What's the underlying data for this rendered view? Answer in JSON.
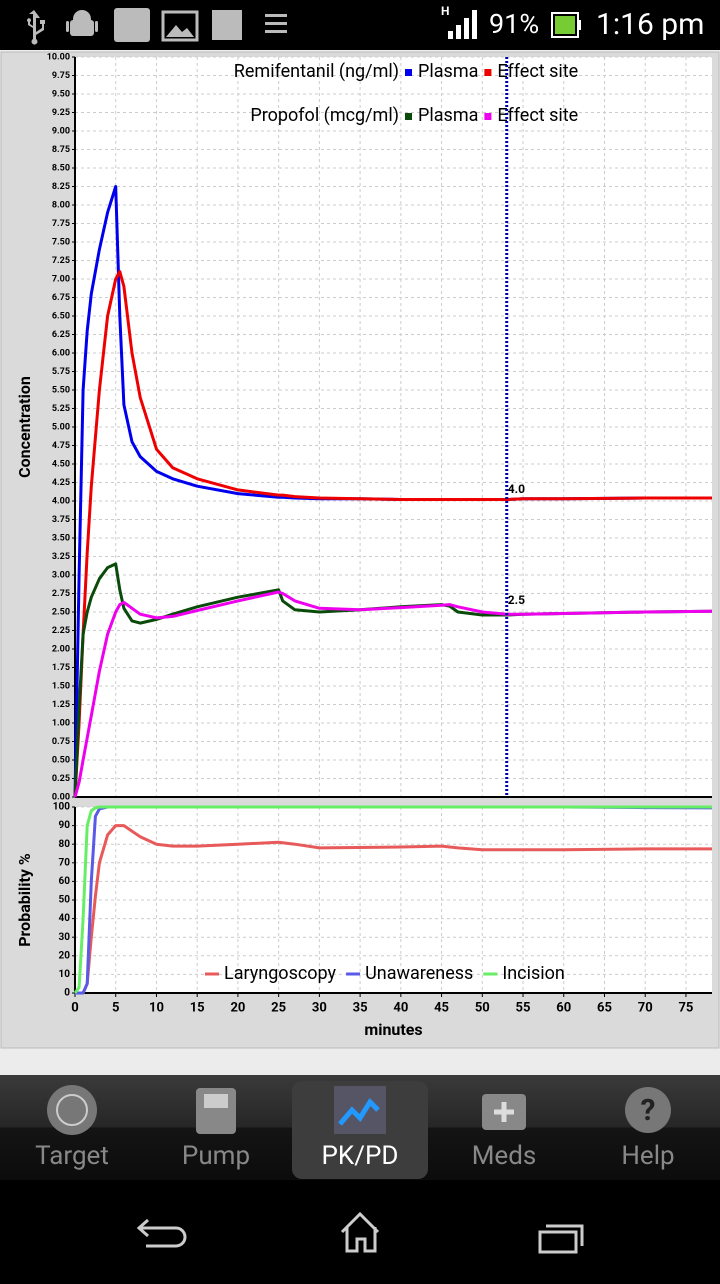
{
  "status": {
    "battery": "91%",
    "time": "1:16 pm"
  },
  "chart_data": [
    {
      "type": "line",
      "ylabel": "Concentration",
      "legend_titles": [
        "Remifentanil (ng/ml)",
        "Propofol (mcg/ml)"
      ],
      "x": [
        0,
        0.5,
        1,
        1.5,
        2,
        3,
        4,
        5,
        5.5,
        6,
        7,
        8,
        10,
        12,
        15,
        20,
        25,
        25.5,
        27,
        30,
        35,
        40,
        45,
        46,
        47,
        50,
        53,
        55,
        60,
        70,
        78.2
      ],
      "xlim": [
        0,
        78.2
      ],
      "ylim": [
        0,
        10
      ],
      "xticks": [
        0,
        5,
        10,
        15,
        20,
        25,
        30,
        35,
        40,
        45,
        50,
        55,
        60,
        65,
        70,
        75
      ],
      "yticks": [
        {
          "value": 0,
          "label": "0.00"
        },
        {
          "value": 0.25,
          "label": "0.25"
        },
        {
          "value": 0.5,
          "label": "0.50"
        },
        {
          "value": 0.75,
          "label": "0.75"
        },
        {
          "value": 1,
          "label": "1.00"
        },
        {
          "value": 1.25,
          "label": "1.25"
        },
        {
          "value": 1.5,
          "label": "1.50"
        },
        {
          "value": 1.75,
          "label": "1.75"
        },
        {
          "value": 2,
          "label": "2.00"
        },
        {
          "value": 2.25,
          "label": "2.25"
        },
        {
          "value": 2.5,
          "label": "2.50"
        },
        {
          "value": 2.75,
          "label": "2.75"
        },
        {
          "value": 3,
          "label": "3.00"
        },
        {
          "value": 3.25,
          "label": "3.25"
        },
        {
          "value": 3.5,
          "label": "3.50"
        },
        {
          "value": 3.75,
          "label": "3.75"
        },
        {
          "value": 4,
          "label": "4.00"
        },
        {
          "value": 4.25,
          "label": "4.25"
        },
        {
          "value": 4.5,
          "label": "4.50"
        },
        {
          "value": 4.75,
          "label": "4.75"
        },
        {
          "value": 5,
          "label": "5.00"
        },
        {
          "value": 5.25,
          "label": "5.25"
        },
        {
          "value": 5.5,
          "label": "5.50"
        },
        {
          "value": 5.75,
          "label": "5.75"
        },
        {
          "value": 6,
          "label": "6.00"
        },
        {
          "value": 6.25,
          "label": "6.25"
        },
        {
          "value": 6.5,
          "label": "6.50"
        },
        {
          "value": 6.75,
          "label": "6.75"
        },
        {
          "value": 7,
          "label": "7.00"
        },
        {
          "value": 7.25,
          "label": "7.25"
        },
        {
          "value": 7.5,
          "label": "7.50"
        },
        {
          "value": 7.75,
          "label": "7.75"
        },
        {
          "value": 8,
          "label": "8.00"
        },
        {
          "value": 8.25,
          "label": "8.25"
        },
        {
          "value": 8.5,
          "label": "8.50"
        },
        {
          "value": 8.75,
          "label": "8.75"
        },
        {
          "value": 9,
          "label": "9.00"
        },
        {
          "value": 9.25,
          "label": "9.25"
        },
        {
          "value": 9.5,
          "label": "9.50"
        },
        {
          "value": 9.75,
          "label": "9.75"
        },
        {
          "value": 10,
          "label": "10.00"
        }
      ],
      "grid": true,
      "cursor_x": 53,
      "cursor_color": "#0000aa",
      "annotations": [
        {
          "x": 53,
          "y": 4.0,
          "text": "4.0"
        },
        {
          "x": 53,
          "y": 2.5,
          "text": "2.5"
        }
      ],
      "series": [
        {
          "name": "Plasma",
          "color": "#0000ee",
          "values": [
            0,
            3.0,
            5.5,
            6.3,
            6.8,
            7.4,
            7.9,
            8.25,
            6.5,
            5.3,
            4.8,
            4.6,
            4.4,
            4.3,
            4.2,
            4.1,
            4.05,
            4.05,
            4.04,
            4.03,
            4.03,
            4.02,
            4.02,
            4.02,
            4.02,
            4.02,
            4.02,
            4.03,
            4.03,
            4.04,
            4.04
          ]
        },
        {
          "name": "Effect site",
          "color": "#ee0000",
          "values": [
            0,
            1.0,
            2.2,
            3.3,
            4.2,
            5.5,
            6.5,
            7.0,
            7.1,
            6.9,
            6.0,
            5.4,
            4.7,
            4.45,
            4.3,
            4.15,
            4.08,
            4.08,
            4.06,
            4.04,
            4.03,
            4.02,
            4.02,
            4.02,
            4.02,
            4.02,
            4.02,
            4.03,
            4.03,
            4.04,
            4.04
          ]
        },
        {
          "name": "Plasma",
          "color": "#0a4a0a",
          "values": [
            0,
            1.2,
            2.2,
            2.5,
            2.7,
            2.95,
            3.1,
            3.15,
            2.8,
            2.55,
            2.38,
            2.35,
            2.4,
            2.47,
            2.57,
            2.7,
            2.8,
            2.65,
            2.53,
            2.5,
            2.53,
            2.57,
            2.6,
            2.58,
            2.5,
            2.46,
            2.46,
            2.47,
            2.48,
            2.5,
            2.51
          ]
        },
        {
          "name": "Effect site",
          "color": "#ee00ee",
          "values": [
            0,
            0.2,
            0.5,
            0.8,
            1.1,
            1.7,
            2.2,
            2.5,
            2.6,
            2.63,
            2.55,
            2.47,
            2.42,
            2.44,
            2.52,
            2.65,
            2.77,
            2.75,
            2.65,
            2.55,
            2.53,
            2.56,
            2.59,
            2.6,
            2.57,
            2.5,
            2.47,
            2.47,
            2.48,
            2.5,
            2.51
          ]
        }
      ]
    },
    {
      "type": "line",
      "ylabel": "Probability %",
      "xlabel": "minutes",
      "x": [
        0,
        0.5,
        1,
        1.5,
        2,
        2.5,
        3,
        4,
        5,
        6,
        7,
        8,
        10,
        12,
        15,
        20,
        25,
        27,
        30,
        40,
        45,
        47,
        50,
        55,
        60,
        70,
        78.2
      ],
      "xlim": [
        0,
        78.2
      ],
      "ylim": [
        0,
        100
      ],
      "xticks": [
        0,
        5,
        10,
        15,
        20,
        25,
        30,
        35,
        40,
        45,
        50,
        55,
        60,
        65,
        70,
        75
      ],
      "yticks": [
        0,
        10,
        20,
        30,
        40,
        50,
        60,
        70,
        80,
        90,
        100
      ],
      "grid": true,
      "series": [
        {
          "name": "Laryngoscopy",
          "color": "#e85a5a",
          "values": [
            0,
            0,
            0,
            5,
            30,
            52,
            70,
            85,
            90,
            90,
            87,
            84,
            80,
            79,
            79,
            80,
            81,
            80,
            78,
            78.5,
            79,
            78,
            77,
            77,
            77,
            77.5,
            77.5
          ]
        },
        {
          "name": "Unawareness",
          "color": "#5a5ae8",
          "values": [
            0,
            0,
            0,
            5,
            60,
            95,
            99,
            100,
            100,
            100,
            100,
            100,
            100,
            100,
            100,
            100,
            100,
            100,
            100,
            100,
            100,
            100,
            100,
            100,
            100,
            99.7,
            99.5
          ]
        },
        {
          "name": "Incision",
          "color": "#66ee66",
          "values": [
            0,
            3,
            40,
            90,
            98,
            99.5,
            100,
            100,
            100,
            100,
            100,
            100,
            100,
            100,
            100,
            100,
            100,
            100,
            100,
            100,
            100,
            100,
            100,
            100,
            100,
            100,
            100
          ]
        }
      ]
    }
  ],
  "tabs": [
    "Target",
    "Pump",
    "PK/PD",
    "Meds",
    "Help"
  ],
  "selected_tab": 2
}
